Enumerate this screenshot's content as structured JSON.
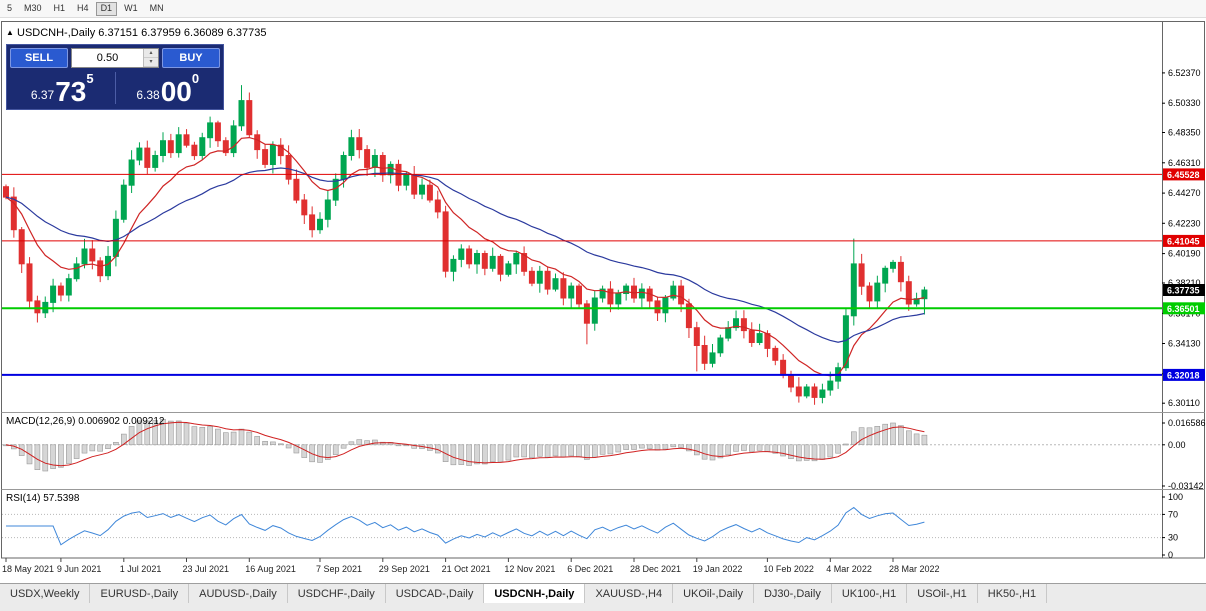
{
  "toolbar": {
    "timeframes": [
      {
        "label": "5",
        "active": false
      },
      {
        "label": "M30",
        "active": false
      },
      {
        "label": "H1",
        "active": false
      },
      {
        "label": "H4",
        "active": false
      },
      {
        "label": "D1",
        "active": true
      },
      {
        "label": "W1",
        "active": false
      },
      {
        "label": "MN",
        "active": false
      }
    ]
  },
  "trade_widget": {
    "sell_label": "SELL",
    "buy_label": "BUY",
    "lot_value": "0.50",
    "spin_up_icon": "▴",
    "spin_down_icon": "▾",
    "sell_price": {
      "small": "6.37",
      "big": "73",
      "sup": "5"
    },
    "buy_price": {
      "small": "6.38",
      "big": "00",
      "sup": "0"
    }
  },
  "tabs": [
    {
      "label": "USDX,Weekly",
      "active": false
    },
    {
      "label": "EURUSD-,Daily",
      "active": false
    },
    {
      "label": "AUDUSD-,Daily",
      "active": false
    },
    {
      "label": "USDCHF-,Daily",
      "active": false
    },
    {
      "label": "USDCAD-,Daily",
      "active": false
    },
    {
      "label": "USDCNH-,Daily",
      "active": true
    },
    {
      "label": "XAUUSD-,H4",
      "active": false
    },
    {
      "label": "UKOil-,Daily",
      "active": false
    },
    {
      "label": "DJ30-,Daily",
      "active": false
    },
    {
      "label": "UK100-,H1",
      "active": false
    },
    {
      "label": "USOil-,H1",
      "active": false
    },
    {
      "label": "HK50-,H1",
      "active": false
    }
  ],
  "chart_data": {
    "type": "candlestick",
    "title": "USDCNH-,Daily",
    "header": {
      "direction_icon": "▲",
      "symbol": "USDCNH-,Daily",
      "open": "6.37151",
      "high": "6.37959",
      "low": "6.36089",
      "close": "6.37735"
    },
    "y_axis": {
      "ticks": [
        "6.52370",
        "6.50330",
        "6.48350",
        "6.46310",
        "6.44270",
        "6.42230",
        "6.40190",
        "6.38210",
        "6.36170",
        "6.34130",
        "6.32090",
        "6.30110"
      ],
      "price_top": 6.558,
      "price_bottom": 6.2965
    },
    "x_ticks": {
      "labels": [
        "18 May 2021",
        "9 Jun 2021",
        "1 Jul 2021",
        "23 Jul 2021",
        "16 Aug 2021",
        "7 Sep 2021",
        "29 Sep 2021",
        "21 Oct 2021",
        "12 Nov 2021",
        "6 Dec 2021",
        "28 Dec 2021",
        "19 Jan 2022",
        "10 Feb 2022",
        "4 Mar 2022",
        "28 Mar 2022"
      ],
      "indices": [
        0,
        7,
        15,
        23,
        31,
        40,
        48,
        56,
        64,
        72,
        80,
        88,
        97,
        105,
        113
      ]
    },
    "candles": {
      "first_open": 6.447,
      "closes": [
        6.44,
        6.418,
        6.395,
        6.37,
        6.362,
        6.369,
        6.38,
        6.374,
        6.385,
        6.395,
        6.405,
        6.397,
        6.387,
        6.4,
        6.425,
        6.448,
        6.465,
        6.473,
        6.46,
        6.468,
        6.478,
        6.47,
        6.482,
        6.475,
        6.468,
        6.48,
        6.49,
        6.478,
        6.47,
        6.488,
        6.505,
        6.482,
        6.472,
        6.462,
        6.475,
        6.468,
        6.452,
        6.438,
        6.428,
        6.418,
        6.425,
        6.438,
        6.452,
        6.468,
        6.48,
        6.472,
        6.46,
        6.468,
        6.455,
        6.462,
        6.448,
        6.455,
        6.442,
        6.448,
        6.438,
        6.43,
        6.39,
        6.398,
        6.405,
        6.395,
        6.402,
        6.392,
        6.4,
        6.388,
        6.395,
        6.402,
        6.39,
        6.382,
        6.39,
        6.378,
        6.385,
        6.372,
        6.38,
        6.368,
        6.355,
        6.372,
        6.378,
        6.368,
        6.375,
        6.38,
        6.372,
        6.378,
        6.37,
        6.362,
        6.372,
        6.38,
        6.368,
        6.352,
        6.34,
        6.328,
        6.335,
        6.345,
        6.352,
        6.358,
        6.35,
        6.342,
        6.348,
        6.338,
        6.33,
        6.32,
        6.312,
        6.306,
        6.312,
        6.305,
        6.31,
        6.316,
        6.325,
        6.36,
        6.395,
        6.38,
        6.37,
        6.382,
        6.392,
        6.396,
        6.383,
        6.368,
        6.3715,
        6.37735
      ],
      "overrides": {
        "4": {
          "low": 6.3555
        },
        "30": {
          "high": 6.5155
        },
        "56": {
          "low": 6.3858
        },
        "74": {
          "low": 6.3408
        },
        "88": {
          "low": 6.3225
        },
        "101": {
          "low": 6.3015
        },
        "103": {
          "low": 6.3
        },
        "108": {
          "high": 6.412
        },
        "117": {
          "high": 6.37959,
          "low": 6.36089
        }
      }
    },
    "moving_averages": [
      {
        "name": "ma-fast-line",
        "period": 10,
        "color": "#cf2525"
      },
      {
        "name": "ma-slow-line",
        "period": 30,
        "color": "#2b3a9e"
      }
    ],
    "hlines": [
      {
        "price": 6.45528,
        "label": "6.45528",
        "color": "#e00000",
        "width": 1
      },
      {
        "price": 6.41045,
        "label": "6.41045",
        "color": "#e00000",
        "width": 1
      },
      {
        "price": 6.36501,
        "label": "6.36501",
        "color": "#00cc00",
        "width": 2
      },
      {
        "price": 6.32018,
        "label": "6.32018",
        "color": "#0000e0",
        "width": 2
      }
    ],
    "current_price_label": {
      "value": "6.37735",
      "bg": "#000000"
    },
    "colors": {
      "up": "#00a651",
      "down": "#e03030",
      "macd_hist": "#d6d6d6",
      "macd_hist_stroke": "#9a9a9a",
      "macd_signal": "#d02020",
      "rsi": "#3f87d9"
    },
    "macd_panel": {
      "label": "MACD(12,26,9) 0.006902 0.009212",
      "value": "0.006902",
      "signal_value": "0.009212",
      "axis_ticks": [
        "0.016586",
        "0.00",
        "-0.03142"
      ],
      "ylim": [
        -0.03142,
        0.016586
      ],
      "calc": {
        "fast": 6,
        "slow": 13,
        "signal": 5
      }
    },
    "rsi_panel": {
      "label": "RSI(14) 57.5398",
      "value": "57.5398",
      "axis_ticks": [
        "100",
        "70",
        "30",
        "0"
      ],
      "levels": [
        70,
        30
      ],
      "calc_period": 7
    }
  }
}
